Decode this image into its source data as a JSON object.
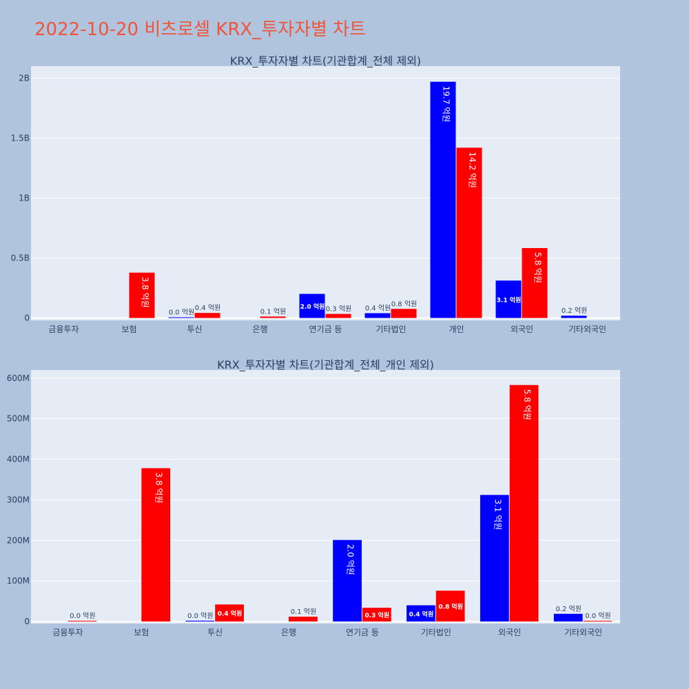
{
  "page": {
    "title": "2022-10-20 비츠로셀 KRX_투자자별 차트",
    "colors": {
      "background": "#b0c4de",
      "plot_bg": "#e5ecf6",
      "title": "#ef553b",
      "series_a": "#0000ff",
      "series_b": "#ff0000"
    }
  },
  "chart_data": [
    {
      "type": "bar",
      "title": "KRX_투자자별 차트(기관합계_전체 제외)",
      "xlabel": "",
      "ylabel": "",
      "categories": [
        "금융투자",
        "보험",
        "투신",
        "은행",
        "연기금 등",
        "기타법인",
        "개인",
        "외국인",
        "기타외국인"
      ],
      "ylim": [
        -20000000,
        2100000000
      ],
      "yticks": [
        0,
        500000000,
        1000000000,
        1500000000,
        2000000000
      ],
      "ytick_labels": [
        "0",
        "0.5B",
        "1B",
        "1.5B",
        "2B"
      ],
      "grid": true,
      "series": [
        {
          "color": "#0000ff",
          "values": [
            null,
            null,
            2000000,
            null,
            201000000,
            40000000,
            1970000000,
            312000000,
            19000000
          ],
          "labels": [
            "",
            "",
            "0.0 억원",
            "",
            "2.0 억원",
            "0.4 억원",
            "19.7 억원",
            "3.1 억원",
            "0.2 억원"
          ]
        },
        {
          "color": "#ff0000",
          "values": [
            null,
            378000000,
            42000000,
            12000000,
            34000000,
            76000000,
            1420000000,
            583000000,
            null
          ],
          "labels": [
            "",
            "3.8 억원",
            "0.4 억원",
            "0.1 억원",
            "0.3 억원",
            "0.8 억원",
            "14.2 억원",
            "5.8 억원",
            ""
          ]
        }
      ]
    },
    {
      "type": "bar",
      "title": "KRX_투자자별 차트(기관합계_전체_개인 제외)",
      "xlabel": "",
      "ylabel": "",
      "categories": [
        "금융투자",
        "보험",
        "투신",
        "은행",
        "연기금 등",
        "기타법인",
        "외국인",
        "기타외국인"
      ],
      "ylim": [
        -5000000,
        620000000
      ],
      "yticks": [
        0,
        100000000,
        200000000,
        300000000,
        400000000,
        500000000,
        600000000
      ],
      "ytick_labels": [
        "0",
        "100M",
        "200M",
        "300M",
        "400M",
        "500M",
        "600M"
      ],
      "grid": true,
      "series": [
        {
          "color": "#0000ff",
          "values": [
            null,
            null,
            2000000,
            null,
            201000000,
            40000000,
            312000000,
            19000000
          ],
          "labels": [
            "",
            "",
            "0.0 억원",
            "",
            "2.0 억원",
            "0.4 억원",
            "3.1 억원",
            "0.2 억원"
          ]
        },
        {
          "color": "#ff0000",
          "values": [
            1000000,
            378000000,
            42000000,
            12000000,
            34000000,
            76000000,
            583000000,
            1000000
          ],
          "labels": [
            "0.0 억원",
            "3.8 억원",
            "0.4 억원",
            "0.1 억원",
            "0.3 억원",
            "0.8 억원",
            "5.8 억원",
            "0.0 억원"
          ]
        }
      ]
    }
  ]
}
